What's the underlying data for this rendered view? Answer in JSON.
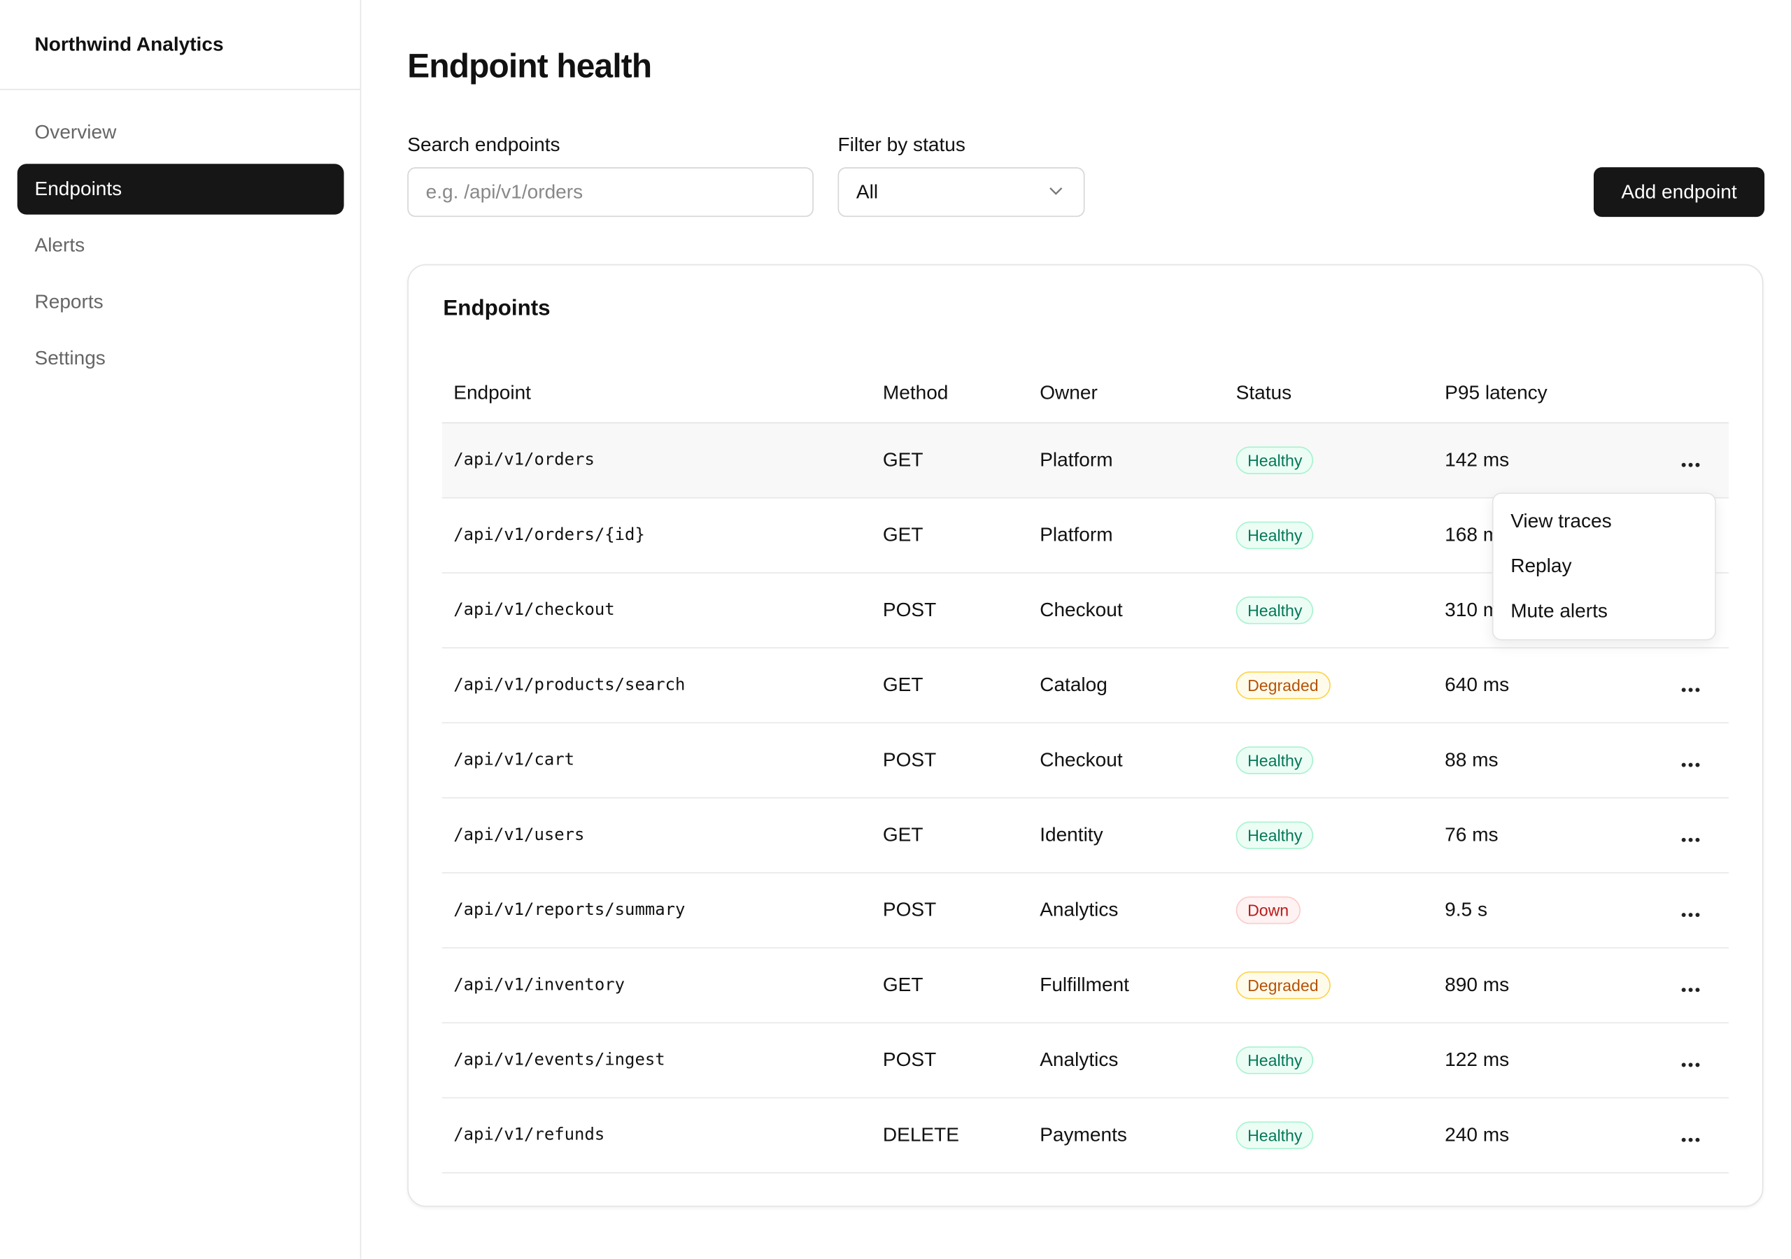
{
  "sidebar": {
    "brand": "Northwind Analytics",
    "nav": [
      "Overview",
      "Endpoints",
      "Alerts",
      "Reports",
      "Settings"
    ],
    "active": 1
  },
  "header": {
    "title": "Endpoint health"
  },
  "filters": {
    "search_label": "Search endpoints",
    "search_placeholder": "e.g. /api/v1/orders",
    "status_label": "Filter by status",
    "status_value": "All",
    "add_button": "Add endpoint"
  },
  "card": {
    "title": "Endpoints"
  },
  "table": {
    "columns": [
      "Endpoint",
      "Method",
      "Owner",
      "Status",
      "P95 latency"
    ],
    "rows": [
      [
        "/api/v1/orders",
        "GET",
        "Platform",
        "Healthy",
        "142 ms"
      ],
      [
        "/api/v1/orders/{id}",
        "GET",
        "Platform",
        "Healthy",
        "168 ms"
      ],
      [
        "/api/v1/checkout",
        "POST",
        "Checkout",
        "Healthy",
        "310 ms"
      ],
      [
        "/api/v1/products/search",
        "GET",
        "Catalog",
        "Degraded",
        "640 ms"
      ],
      [
        "/api/v1/cart",
        "POST",
        "Checkout",
        "Healthy",
        "88 ms"
      ],
      [
        "/api/v1/users",
        "GET",
        "Identity",
        "Healthy",
        "76 ms"
      ],
      [
        "/api/v1/reports/summary",
        "POST",
        "Analytics",
        "Down",
        "9.5 s"
      ],
      [
        "/api/v1/inventory",
        "GET",
        "Fulfillment",
        "Degraded",
        "890 ms"
      ],
      [
        "/api/v1/events/ingest",
        "POST",
        "Analytics",
        "Healthy",
        "122 ms"
      ],
      [
        "/api/v1/refunds",
        "DELETE",
        "Payments",
        "Healthy",
        "240 ms"
      ]
    ]
  },
  "menu": {
    "items": [
      "View traces",
      "Replay",
      "Mute alerts"
    ]
  }
}
